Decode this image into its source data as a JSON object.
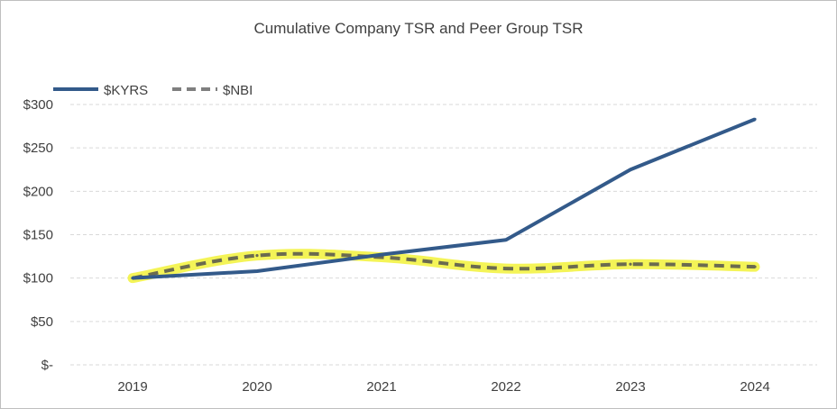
{
  "chart_data": {
    "type": "line",
    "title": "Cumulative Company TSR and Peer Group TSR",
    "xlabel": "",
    "ylabel": "",
    "categories": [
      "2019",
      "2020",
      "2021",
      "2022",
      "2023",
      "2024"
    ],
    "ylim": [
      0,
      300
    ],
    "yticks": [
      0,
      50,
      100,
      150,
      200,
      250,
      300
    ],
    "ytick_labels": [
      "$-",
      "$50",
      "$100",
      "$150",
      "$200",
      "$250",
      "$300"
    ],
    "grid": true,
    "legend_position": "top-left",
    "series": [
      {
        "name": "$KYRS",
        "values": [
          100,
          108,
          127,
          144,
          225,
          283
        ],
        "color": "#335a8a",
        "style": "solid"
      },
      {
        "name": "$NBI",
        "values": [
          100,
          126,
          124,
          111,
          116,
          113
        ],
        "color": "#6b6b4f",
        "style": "dashed",
        "highlight": "#f2f23a"
      }
    ]
  }
}
